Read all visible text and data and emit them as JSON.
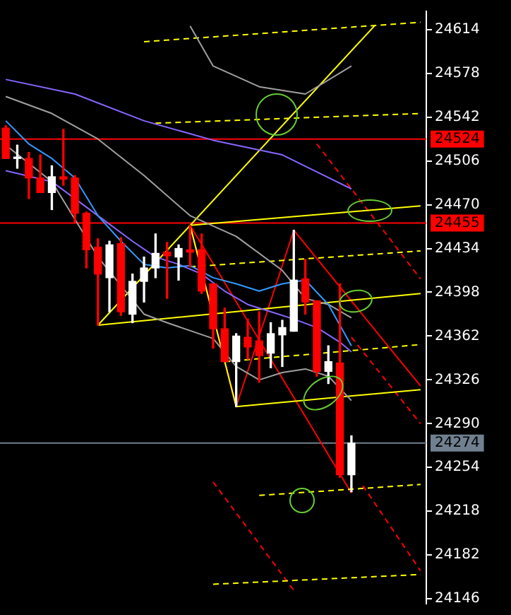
{
  "chart_data": {
    "type": "candlestick",
    "categories": [
      null,
      null,
      null,
      null,
      null,
      null,
      null,
      null,
      null,
      null,
      null,
      null,
      null,
      null,
      null,
      null,
      null,
      null,
      null,
      null,
      null,
      null,
      null,
      null,
      null,
      null,
      null,
      null,
      null,
      null,
      null,
      null,
      null,
      null,
      null,
      null,
      null
    ],
    "ohlc": [
      [
        24533,
        24535,
        24508,
        24508
      ],
      [
        24508,
        24519,
        24500,
        24509
      ],
      [
        24508,
        24513,
        24475,
        24492
      ],
      [
        24492,
        24511,
        24480,
        24480
      ],
      [
        24480,
        24502,
        24466,
        24493
      ],
      [
        24493,
        24532,
        24486,
        24491
      ],
      [
        24492,
        24494,
        24455,
        24463
      ],
      [
        24463,
        24464,
        24418,
        24433
      ],
      [
        24435,
        24442,
        24371,
        24413
      ],
      [
        24410,
        24440,
        24382,
        24437
      ],
      [
        24438,
        24443,
        24379,
        24382
      ],
      [
        24380,
        24413,
        24373,
        24407
      ],
      [
        24407,
        24427,
        24390,
        24418
      ],
      [
        24418,
        24446,
        24410,
        24430
      ],
      [
        24431,
        24439,
        24393,
        24428
      ],
      [
        24427,
        24437,
        24408,
        24434
      ],
      [
        24433,
        24453,
        24419,
        24431
      ],
      [
        24433,
        24446,
        24397,
        24399
      ],
      [
        24405,
        24405,
        24352,
        24368
      ],
      [
        24368,
        24385,
        24341,
        24341
      ],
      [
        24341,
        24364,
        24304,
        24362
      ],
      [
        24361,
        24376,
        24343,
        24353
      ],
      [
        24358,
        24382,
        24324,
        24346
      ],
      [
        24348,
        24373,
        24336,
        24364
      ],
      [
        24363,
        24375,
        24337,
        24369
      ],
      [
        24366,
        24449,
        24366,
        24408
      ],
      [
        24409,
        24425,
        24380,
        24390
      ],
      [
        24391,
        24391,
        24329,
        24333
      ],
      [
        24333,
        24354,
        24323,
        24341
      ],
      [
        24340,
        24405,
        24246,
        24248
      ],
      [
        24248,
        24280,
        24234,
        24274
      ],
      null,
      null,
      null,
      null,
      null,
      null
    ],
    "colors": [
      "#ff0000",
      "#ffffff",
      "#ff0000",
      "#ff0000",
      "#ffffff",
      "#ff0000",
      "#ff0000",
      "#ff0000",
      "#ff0000",
      "#ffffff",
      "#ff0000",
      "#ffffff",
      "#ffffff",
      "#ffffff",
      "#ff0000",
      "#ffffff",
      "#ff0000",
      "#ff0000",
      "#ff0000",
      "#ff0000",
      "#ffffff",
      "#ff0000",
      "#ff0000",
      "#ffffff",
      "#ffffff",
      "#ffffff",
      "#ff0000",
      "#ff0000",
      "#ffffff",
      "#ff0000",
      "#ffffff",
      null,
      null,
      null,
      null,
      null,
      null
    ],
    "series": [
      {
        "type": "line",
        "color": "#3399ff",
        "values": [
          24539,
          null,
          24520,
          null,
          24508,
          null,
          24492,
          null,
          24461,
          null,
          24440,
          null,
          24421,
          null,
          24418,
          null,
          24420,
          null,
          24410,
          null,
          24405,
          null,
          24399,
          null,
          24405,
          null,
          24408,
          null,
          24388,
          null,
          24354,
          null,
          null,
          null,
          null,
          null,
          null
        ]
      },
      {
        "type": "line",
        "color": "#8866ff",
        "values": [
          24498,
          null,
          null,
          null,
          24489,
          null,
          null,
          null,
          24461,
          null,
          null,
          24440,
          null,
          24427,
          null,
          24421,
          null,
          24413,
          null,
          24399,
          null,
          24388,
          null,
          24382,
          null,
          24376,
          null,
          24369,
          null,
          24357,
          24349,
          null,
          null,
          null,
          null,
          null,
          null
        ]
      },
      {
        "type": "line",
        "color": "#8866ff",
        "values": [
          24573,
          null,
          null,
          null,
          null,
          null,
          24561,
          null,
          null,
          null,
          null,
          null,
          24539,
          null,
          null,
          null,
          null,
          null,
          24523,
          null,
          null,
          null,
          null,
          null,
          24511,
          null,
          null,
          null,
          null,
          null,
          24483,
          null,
          null,
          null,
          null,
          null,
          null
        ]
      },
      {
        "type": "line",
        "color": "#a0a0a0",
        "values": [
          null,
          null,
          null,
          null,
          null,
          null,
          null,
          null,
          null,
          null,
          null,
          null,
          null,
          null,
          null,
          null,
          24617,
          null,
          24584,
          null,
          null,
          null,
          24567,
          null,
          null,
          null,
          24561,
          null,
          null,
          null,
          24584,
          null,
          null,
          null,
          null,
          null,
          null
        ]
      },
      {
        "type": "line",
        "color": "#a0a0a0",
        "values": [
          24559,
          null,
          null,
          null,
          24545,
          null,
          null,
          null,
          24524,
          null,
          null,
          null,
          24494,
          null,
          null,
          null,
          24461,
          null,
          null,
          null,
          24444,
          null,
          null,
          null,
          24416,
          null,
          24393,
          null,
          24388,
          null,
          24377,
          null,
          null,
          null,
          null,
          null,
          null
        ]
      },
      {
        "type": "line",
        "color": "#a0a0a0",
        "values": [
          24519,
          null,
          null,
          null,
          24489,
          null,
          null,
          null,
          24427,
          null,
          null,
          null,
          24380,
          null,
          24373,
          null,
          null,
          null,
          24360,
          null,
          24337,
          null,
          24326,
          null,
          24332,
          null,
          24335,
          null,
          24329,
          null,
          24309,
          null,
          null,
          null,
          null,
          null,
          null
        ]
      },
      {
        "type": "line",
        "color": "#ffff00",
        "values": [
          null,
          null,
          null,
          null,
          null,
          null,
          null,
          null,
          24371,
          null,
          null,
          null,
          null,
          null,
          null,
          null,
          null,
          null,
          null,
          null,
          null,
          null,
          null,
          null,
          null,
          null,
          null,
          null,
          null,
          null,
          null,
          null,
          24617,
          null,
          null,
          null,
          null
        ]
      },
      {
        "type": "line",
        "color": "#ffff00",
        "values": [
          null,
          null,
          null,
          null,
          null,
          null,
          null,
          null,
          null,
          null,
          null,
          null,
          null,
          null,
          null,
          null,
          24453,
          null,
          null,
          null,
          null,
          null,
          null,
          null,
          null,
          null,
          null,
          null,
          null,
          null,
          null,
          null,
          null,
          null,
          null,
          null,
          24469
        ]
      },
      {
        "type": "line",
        "color": "#ffff00",
        "values": [
          null,
          null,
          null,
          null,
          null,
          null,
          null,
          null,
          24371,
          null,
          null,
          null,
          null,
          null,
          null,
          null,
          null,
          null,
          null,
          null,
          null,
          null,
          null,
          null,
          null,
          null,
          null,
          null,
          null,
          null,
          null,
          null,
          null,
          null,
          null,
          null,
          24397
        ]
      },
      {
        "type": "line",
        "color": "#ffff00",
        "values": [
          null,
          null,
          null,
          null,
          null,
          null,
          null,
          null,
          null,
          null,
          null,
          null,
          null,
          null,
          null,
          null,
          null,
          null,
          null,
          null,
          24304,
          null,
          null,
          null,
          null,
          null,
          null,
          null,
          null,
          null,
          null,
          null,
          null,
          null,
          null,
          null,
          24318
        ]
      },
      {
        "type": "line",
        "color": "#ffff00",
        "values": [
          null,
          null,
          null,
          null,
          null,
          null,
          null,
          null,
          null,
          null,
          null,
          null,
          null,
          null,
          null,
          null,
          24453,
          null,
          null,
          null,
          24304,
          null,
          null,
          null,
          null,
          null,
          null,
          null,
          null,
          null,
          null,
          null,
          null,
          null,
          null,
          null,
          null
        ]
      },
      {
        "type": "line",
        "color": "#ffff00",
        "line_style": "dashed",
        "values": [
          null,
          null,
          null,
          null,
          null,
          null,
          null,
          null,
          null,
          null,
          null,
          null,
          24604,
          null,
          null,
          null,
          null,
          null,
          null,
          null,
          null,
          null,
          null,
          null,
          null,
          null,
          null,
          null,
          null,
          null,
          null,
          null,
          null,
          null,
          null,
          null,
          24620
        ]
      },
      {
        "type": "line",
        "color": "#ffff00",
        "line_style": "dashed",
        "values": [
          null,
          null,
          null,
          null,
          null,
          null,
          null,
          null,
          null,
          null,
          null,
          null,
          null,
          24537,
          null,
          null,
          null,
          null,
          null,
          null,
          null,
          null,
          null,
          null,
          null,
          null,
          null,
          null,
          null,
          null,
          null,
          null,
          null,
          null,
          null,
          null,
          24545
        ]
      },
      {
        "type": "line",
        "color": "#ffff00",
        "line_style": "dashed",
        "values": [
          null,
          null,
          null,
          null,
          null,
          null,
          null,
          null,
          null,
          null,
          null,
          null,
          null,
          null,
          null,
          null,
          24419,
          null,
          null,
          null,
          null,
          null,
          null,
          null,
          null,
          null,
          null,
          null,
          null,
          null,
          null,
          null,
          null,
          null,
          null,
          null,
          24432
        ]
      },
      {
        "type": "line",
        "color": "#ffff00",
        "line_style": "dashed",
        "values": [
          null,
          null,
          null,
          null,
          null,
          null,
          null,
          null,
          null,
          null,
          null,
          null,
          null,
          null,
          null,
          null,
          null,
          null,
          null,
          24341,
          null,
          null,
          null,
          null,
          null,
          null,
          null,
          null,
          null,
          null,
          null,
          null,
          null,
          null,
          null,
          null,
          24355
        ]
      },
      {
        "type": "line",
        "color": "#ffff00",
        "line_style": "dashed",
        "values": [
          null,
          null,
          null,
          null,
          null,
          null,
          null,
          null,
          null,
          null,
          null,
          null,
          null,
          null,
          null,
          null,
          null,
          null,
          null,
          null,
          null,
          null,
          24231,
          null,
          null,
          null,
          null,
          null,
          null,
          null,
          null,
          null,
          null,
          null,
          null,
          null,
          24240
        ]
      },
      {
        "type": "line",
        "color": "#ffff00",
        "line_style": "dashed",
        "values": [
          null,
          null,
          null,
          null,
          null,
          null,
          null,
          null,
          null,
          null,
          null,
          null,
          null,
          null,
          null,
          null,
          null,
          null,
          24158,
          null,
          null,
          null,
          null,
          null,
          null,
          null,
          null,
          null,
          null,
          null,
          null,
          null,
          null,
          null,
          null,
          null,
          24166
        ]
      },
      {
        "type": "line",
        "color": "#ff0000",
        "values": [
          null,
          null,
          null,
          null,
          null,
          null,
          null,
          null,
          null,
          null,
          null,
          null,
          null,
          null,
          null,
          null,
          24453,
          null,
          null,
          null,
          24304,
          null,
          null,
          null,
          null,
          24449,
          null,
          null,
          null,
          null,
          null,
          null,
          null,
          null,
          null,
          null,
          24321
        ]
      },
      {
        "type": "line",
        "color": "#ff0000",
        "values": [
          null,
          null,
          null,
          null,
          null,
          null,
          null,
          null,
          null,
          null,
          null,
          null,
          null,
          null,
          null,
          null,
          24453,
          null,
          null,
          null,
          null,
          null,
          null,
          null,
          null,
          null,
          null,
          null,
          null,
          null,
          24233,
          null,
          null,
          null,
          null,
          null,
          null
        ]
      },
      {
        "type": "line",
        "color": "#ff0000",
        "line_style": "dashed",
        "values": [
          null,
          null,
          null,
          null,
          null,
          null,
          null,
          null,
          null,
          null,
          null,
          null,
          null,
          null,
          null,
          null,
          null,
          null,
          null,
          null,
          null,
          null,
          null,
          null,
          null,
          null,
          null,
          24520,
          null,
          null,
          null,
          null,
          null,
          null,
          null,
          null,
          24409
        ]
      },
      {
        "type": "line",
        "color": "#ff0000",
        "line_style": "dashed",
        "values": [
          null,
          null,
          null,
          null,
          null,
          null,
          null,
          null,
          null,
          null,
          null,
          null,
          null,
          null,
          null,
          null,
          null,
          null,
          null,
          null,
          null,
          null,
          null,
          null,
          null,
          null,
          null,
          null,
          null,
          null,
          24361,
          null,
          null,
          null,
          null,
          null,
          24290
        ]
      },
      {
        "type": "line",
        "color": "#ff0000",
        "line_style": "dashed",
        "values": [
          null,
          null,
          null,
          null,
          null,
          null,
          null,
          null,
          null,
          null,
          null,
          null,
          null,
          null,
          null,
          null,
          null,
          null,
          null,
          null,
          null,
          null,
          null,
          null,
          null,
          null,
          null,
          null,
          null,
          null,
          null,
          24239,
          null,
          null,
          null,
          null,
          24169
        ]
      },
      {
        "type": "line",
        "color": "#ff0000",
        "line_style": "dashed",
        "values": [
          null,
          null,
          null,
          null,
          null,
          null,
          null,
          null,
          null,
          null,
          null,
          null,
          null,
          null,
          null,
          null,
          null,
          null,
          24242,
          null,
          null,
          null,
          null,
          null,
          null,
          24153,
          null,
          null,
          null,
          null,
          null,
          null,
          null,
          null,
          null,
          null,
          null
        ]
      }
    ],
    "ylim": [
      24142,
      24629
    ],
    "yticks": [
      24146,
      24182,
      24218,
      24254,
      24290,
      24326,
      24362,
      24398,
      24434,
      24470,
      24506,
      24542,
      24578,
      24614
    ],
    "ref_lines": [
      {
        "axis": "y",
        "value": 24524,
        "label": "24524",
        "color": "#ff0000"
      },
      {
        "axis": "y",
        "value": 24455,
        "label": "24455",
        "color": "#ff0000"
      },
      {
        "axis": "y",
        "value": 24274,
        "label": "24274",
        "color": "#708090"
      }
    ],
    "tick_labels": "y",
    "grid": false,
    "legend": false
  }
}
